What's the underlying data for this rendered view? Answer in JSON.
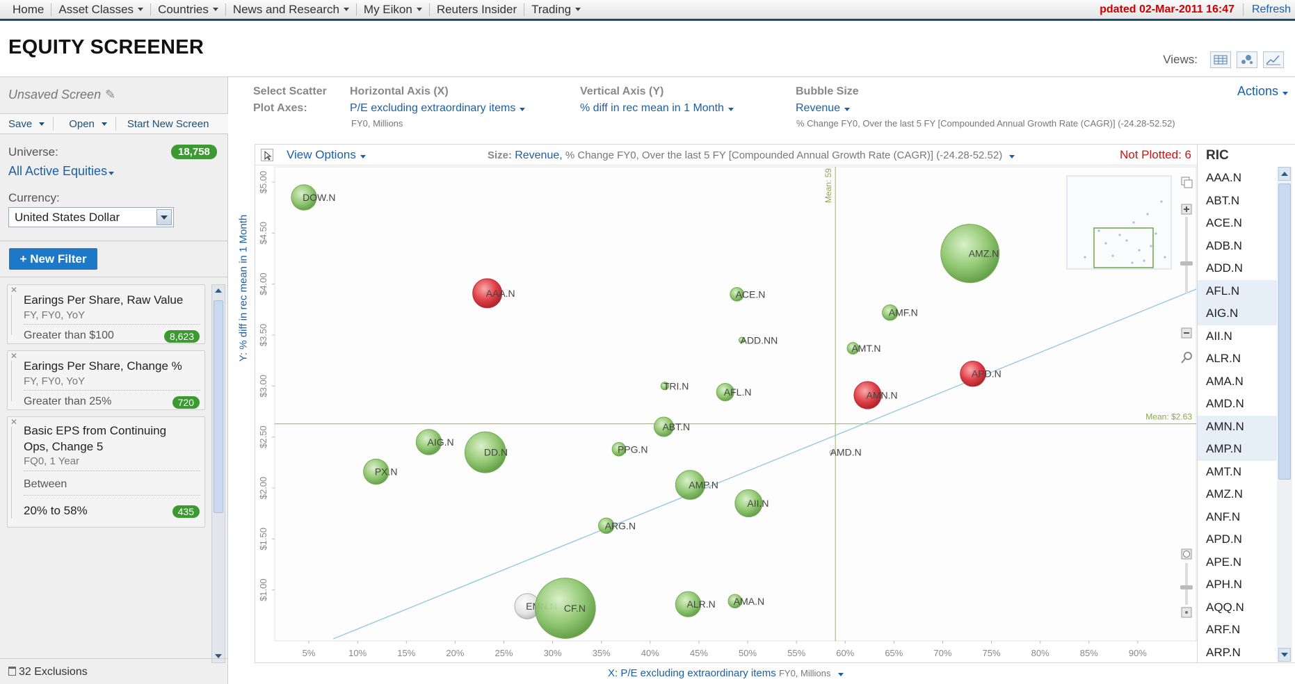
{
  "nav": {
    "items": [
      {
        "label": "Home",
        "dropdown": false
      },
      {
        "label": "Asset Classes",
        "dropdown": true
      },
      {
        "label": "Countries",
        "dropdown": true
      },
      {
        "label": "News and Research",
        "dropdown": true
      },
      {
        "label": "My Eikon",
        "dropdown": true
      },
      {
        "label": "Reuters Insider",
        "dropdown": false
      },
      {
        "label": "Trading",
        "dropdown": true
      }
    ],
    "updated": "pdated 02-Mar-2011 16:47",
    "refresh": "Refresh"
  },
  "page": {
    "title": "EQUITY SCREENER",
    "views_label": "Views:"
  },
  "sidebar": {
    "screen_name": "Unsaved Screen",
    "save": "Save",
    "open": "Open",
    "start_new": "Start New Screen",
    "universe_label": "Universe:",
    "universe_count": "18,758",
    "universe_value": "All Active Equities",
    "currency_label": "Currency:",
    "currency_value": "United States Dollar",
    "new_filter": "+ New Filter",
    "filters": [
      {
        "title": "Earings Per Share, Raw Value",
        "sub": "FY, FY0, YoY",
        "condition": "Greater than $100",
        "count": "8,623"
      },
      {
        "title": "Earings Per Share, Change %",
        "sub": "FY, FY0, YoY",
        "condition": "Greater than 25%",
        "count": "720"
      },
      {
        "title_1": "Basic EPS from Continuing",
        "title_2": "Ops, Change 5",
        "sub": "FQ0, 1 Year",
        "condition": "Between",
        "range": "20% to 58%",
        "count": "435"
      }
    ],
    "exclusions": "32 Exclusions"
  },
  "axes_config": {
    "select_label_1": "Select Scatter",
    "select_label_2": "Plot Axes:",
    "x_label": "Horizontal Axis (X)",
    "x_value": "P/E excluding extraordinary items",
    "x_sub": "FY0, Millions",
    "y_label": "Vertical Axis (Y)",
    "y_value": "% diff in rec mean in 1 Month",
    "bubble_label": "Bubble Size",
    "bubble_value": "Revenue",
    "bubble_sub": "% Change FY0, Over the last 5 FY [Compounded Annual Growth Rate (CAGR)] (-24.28-52.52)",
    "actions": "Actions"
  },
  "chart_toolbar": {
    "view_options": "View Options",
    "size_label": "Size:",
    "size_value": "Revenue,",
    "size_desc": "% Change FY0, Over the last 5 FY [Compounded Annual Growth Rate (CAGR)] (-24.28-52.52)",
    "not_plotted": "Not Plotted: 6"
  },
  "colors": {
    "bubble_green": "#8cc56a",
    "bubble_red": "#e0323a",
    "bubble_grey": "#e2e2e2",
    "mean_line": "#a8c46a",
    "trend_line": "#8cc8e0",
    "link_blue": "#1a5fa8"
  },
  "chart_data": {
    "type": "scatter",
    "xlabel": "X: P/E excluding extraordinary items",
    "xlabel_sub": "FY0, Millions",
    "ylabel": "Y: % diff in rec mean in 1 Month",
    "xlim": [
      1.5,
      96
    ],
    "ylim": [
      0.5,
      5.15
    ],
    "x_ticks": [
      "5%",
      "10%",
      "15%",
      "20%",
      "25%",
      "30%",
      "35%",
      "40%",
      "45%",
      "50%",
      "55%",
      "60%",
      "65%",
      "70%",
      "75%",
      "80%",
      "85%",
      "90%"
    ],
    "x_tick_values": [
      5,
      10,
      15,
      20,
      25,
      30,
      35,
      40,
      45,
      50,
      55,
      60,
      65,
      70,
      75,
      80,
      85,
      90
    ],
    "y_ticks": [
      "$5.00",
      "$4.50",
      "$4.00",
      "$3.50",
      "$3.00",
      "$2.50",
      "$2.00",
      "$1.50",
      "$1.00"
    ],
    "y_tick_values": [
      5.0,
      4.5,
      4.0,
      3.5,
      3.0,
      2.5,
      2.0,
      1.5,
      1.0
    ],
    "mean_x": {
      "label": "Mean: 59",
      "value": 59
    },
    "mean_y": {
      "label": "Mean: $2.63",
      "value": 2.63
    },
    "trend": {
      "from": [
        7.5,
        0.52
      ],
      "to": [
        96,
        3.95
      ]
    },
    "points": [
      {
        "ric": "DOW.N",
        "x": 4.5,
        "y": 4.85,
        "size": 13,
        "color": "green"
      },
      {
        "ric": "AAA.N",
        "x": 23.3,
        "y": 3.91,
        "size": 15,
        "color": "red"
      },
      {
        "ric": "AMZ.N",
        "x": 72.8,
        "y": 4.3,
        "size": 30,
        "color": "green"
      },
      {
        "ric": "ACE.N",
        "x": 48.9,
        "y": 3.9,
        "size": 7,
        "color": "green"
      },
      {
        "ric": "AMF.N",
        "x": 64.6,
        "y": 3.72,
        "size": 8,
        "color": "green"
      },
      {
        "ric": "ADD.NN",
        "x": 49.4,
        "y": 3.45,
        "size": 3,
        "color": "green"
      },
      {
        "ric": "AMT.N",
        "x": 60.8,
        "y": 3.37,
        "size": 6,
        "color": "green"
      },
      {
        "ric": "APD.N",
        "x": 73.1,
        "y": 3.12,
        "size": 13,
        "color": "red"
      },
      {
        "ric": "TRI.N",
        "x": 41.5,
        "y": 3.0,
        "size": 4,
        "color": "green"
      },
      {
        "ric": "AFL.N",
        "x": 47.7,
        "y": 2.94,
        "size": 9,
        "color": "green"
      },
      {
        "ric": "AMN.N",
        "x": 62.3,
        "y": 2.91,
        "size": 14,
        "color": "red"
      },
      {
        "ric": "ABT.N",
        "x": 41.4,
        "y": 2.6,
        "size": 10,
        "color": "green"
      },
      {
        "ric": "AIG.N",
        "x": 17.3,
        "y": 2.45,
        "size": 13,
        "color": "green"
      },
      {
        "ric": "DD.N",
        "x": 23.1,
        "y": 2.35,
        "size": 21,
        "color": "green"
      },
      {
        "ric": "PPG.N",
        "x": 36.8,
        "y": 2.38,
        "size": 7,
        "color": "green"
      },
      {
        "ric": "AMD.N",
        "x": 58.6,
        "y": 2.35,
        "size": 2,
        "color": "grey"
      },
      {
        "ric": "PX.N",
        "x": 11.9,
        "y": 2.16,
        "size": 13,
        "color": "green"
      },
      {
        "ric": "AMP.N",
        "x": 44.1,
        "y": 2.03,
        "size": 15,
        "color": "green"
      },
      {
        "ric": "AII.N",
        "x": 50.1,
        "y": 1.85,
        "size": 14,
        "color": "green"
      },
      {
        "ric": "ARG.N",
        "x": 35.5,
        "y": 1.63,
        "size": 8,
        "color": "green"
      },
      {
        "ric": "EMN.N",
        "x": 27.4,
        "y": 0.84,
        "size": 13,
        "color": "grey"
      },
      {
        "ric": "CF.N",
        "x": 31.3,
        "y": 0.82,
        "size": 31,
        "color": "green"
      },
      {
        "ric": "ALR.N",
        "x": 43.9,
        "y": 0.86,
        "size": 13,
        "color": "green"
      },
      {
        "ric": "AMA.N",
        "x": 48.7,
        "y": 0.89,
        "size": 7,
        "color": "green"
      }
    ]
  },
  "ric_list": {
    "header": "RIC",
    "items": [
      "AAA.N",
      "ABT.N",
      "ACE.N",
      "ADB.N",
      "ADD.N",
      "AFL.N",
      "AIG.N",
      "AII.N",
      "ALR.N",
      "AMA.N",
      "AMD.N",
      "AMN.N",
      "AMP.N",
      "AMT.N",
      "AMZ.N",
      "ANF.N",
      "APD.N",
      "APE.N",
      "APH.N",
      "AQQ.N",
      "ARF.N",
      "ARP.N"
    ],
    "highlighted": [
      "AFL.N",
      "AIG.N",
      "AMN.N",
      "AMP.N"
    ]
  }
}
